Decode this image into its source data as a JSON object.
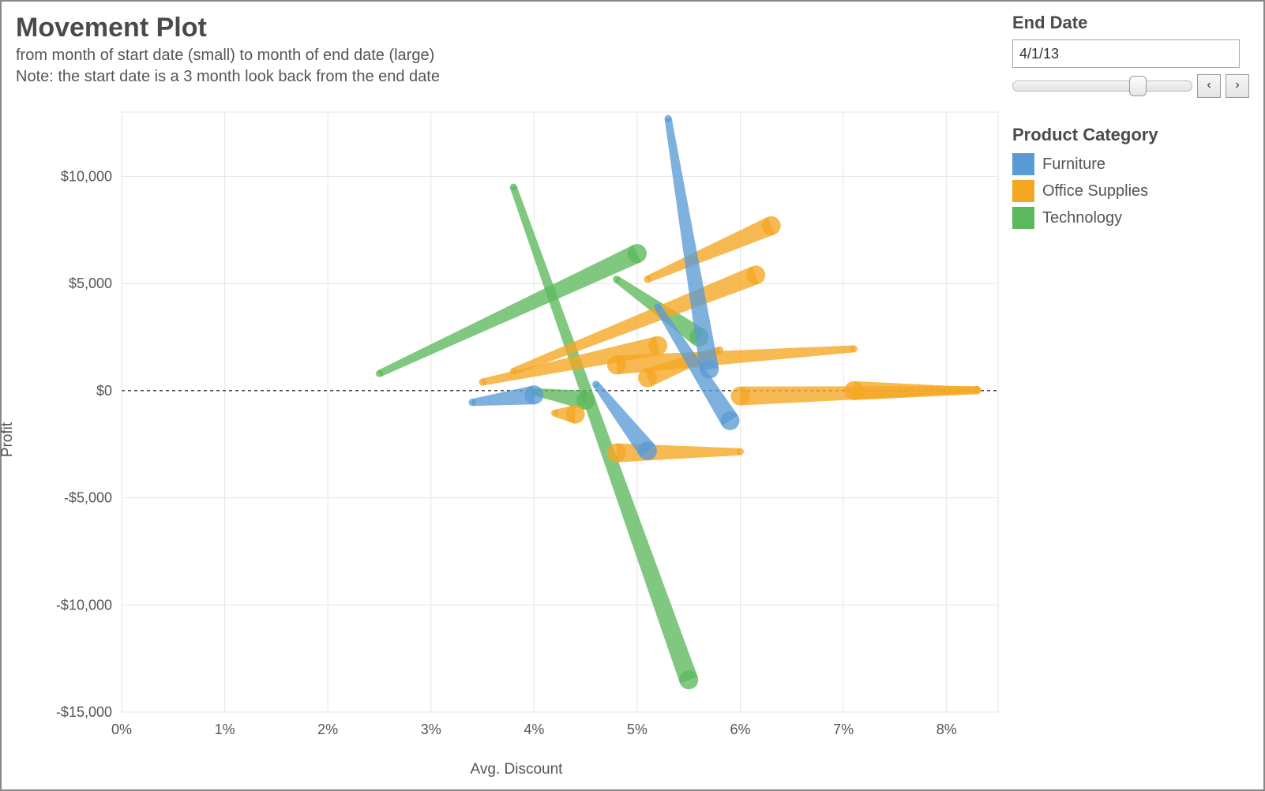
{
  "header": {
    "title": "Movement Plot",
    "subtitle_line1": "from month of start date (small) to month of end date (large)",
    "subtitle_line2": "Note: the start date is a 3 month look back from the end date"
  },
  "controls": {
    "end_date_label": "End Date",
    "end_date_value": "4/1/13",
    "slider_position_pct": 70,
    "prev_glyph": "‹",
    "next_glyph": "›"
  },
  "legend": {
    "title": "Product Category",
    "items": [
      {
        "label": "Furniture",
        "color": "#5b9bd5"
      },
      {
        "label": "Office Supplies",
        "color": "#f5a623"
      },
      {
        "label": "Technology",
        "color": "#5cb85c"
      }
    ]
  },
  "chart": {
    "type": "comet-scatter",
    "x_label": "Avg. Discount",
    "y_label": "Profit",
    "x_unit": "percent",
    "y_unit": "$",
    "xlim": [
      0,
      8.5
    ],
    "ylim": [
      -15000,
      13000
    ],
    "x_ticks": [
      0,
      1,
      2,
      3,
      4,
      5,
      6,
      7,
      8
    ],
    "y_ticks": [
      -15000,
      -10000,
      -5000,
      0,
      5000,
      10000
    ],
    "y_tick_labels": [
      "-$15,000",
      "-$10,000",
      "-$5,000",
      "$0",
      "$5,000",
      "$10,000"
    ],
    "x_tick_labels": [
      "0%",
      "1%",
      "2%",
      "3%",
      "4%",
      "5%",
      "6%",
      "7%",
      "8%"
    ],
    "background_color": "#ffffff",
    "grid_color": "#e5e5e5",
    "zero_line_color": "#2f2f2f",
    "zero_line_dash": "4 4",
    "font_size_axis": 18,
    "font_size_title": 34,
    "opacity": 0.78,
    "start_radius": 4.5,
    "end_radius": 12,
    "colors": {
      "Furniture": "#5b9bd5",
      "Office Supplies": "#f5a623",
      "Technology": "#5cb85c"
    },
    "series": [
      {
        "cat": "Technology",
        "x1": 3.8,
        "y1": 9500,
        "x2": 5.5,
        "y2": -13500
      },
      {
        "cat": "Technology",
        "x1": 4.8,
        "y1": 5200,
        "x2": 5.6,
        "y2": 2500
      },
      {
        "cat": "Technology",
        "x1": 2.5,
        "y1": 800,
        "x2": 5.0,
        "y2": 6400
      },
      {
        "cat": "Technology",
        "x1": 4.0,
        "y1": -50,
        "x2": 4.5,
        "y2": -450
      },
      {
        "cat": "Office Supplies",
        "x1": 3.5,
        "y1": 400,
        "x2": 5.2,
        "y2": 2100
      },
      {
        "cat": "Office Supplies",
        "x1": 5.1,
        "y1": 5200,
        "x2": 6.3,
        "y2": 7700
      },
      {
        "cat": "Office Supplies",
        "x1": 3.8,
        "y1": 900,
        "x2": 6.15,
        "y2": 5400
      },
      {
        "cat": "Office Supplies",
        "x1": 7.1,
        "y1": 1950,
        "x2": 4.8,
        "y2": 1200
      },
      {
        "cat": "Office Supplies",
        "x1": 5.8,
        "y1": 1900,
        "x2": 5.1,
        "y2": 600
      },
      {
        "cat": "Office Supplies",
        "x1": 8.3,
        "y1": 0,
        "x2": 7.1,
        "y2": 0
      },
      {
        "cat": "Office Supplies",
        "x1": 8.3,
        "y1": 50,
        "x2": 6.0,
        "y2": -250
      },
      {
        "cat": "Office Supplies",
        "x1": 4.2,
        "y1": -1050,
        "x2": 4.4,
        "y2": -1100
      },
      {
        "cat": "Office Supplies",
        "x1": 6.0,
        "y1": -2850,
        "x2": 4.8,
        "y2": -2900
      },
      {
        "cat": "Furniture",
        "x1": 5.3,
        "y1": 12700,
        "x2": 5.7,
        "y2": 1000
      },
      {
        "cat": "Furniture",
        "x1": 5.2,
        "y1": 3900,
        "x2": 5.9,
        "y2": -1400
      },
      {
        "cat": "Furniture",
        "x1": 4.6,
        "y1": 300,
        "x2": 5.1,
        "y2": -2800
      },
      {
        "cat": "Furniture",
        "x1": 3.4,
        "y1": -550,
        "x2": 4.0,
        "y2": -200
      }
    ]
  }
}
